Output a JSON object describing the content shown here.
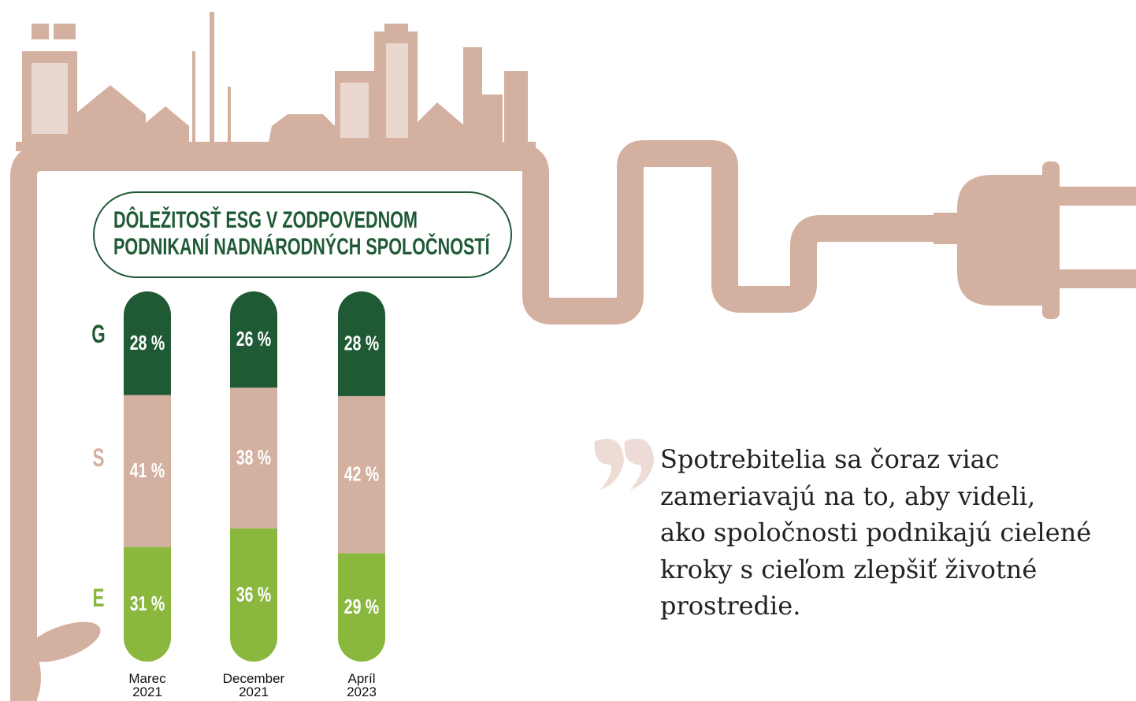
{
  "chart_data": {
    "type": "stacked-bar",
    "title": [
      "DÔLEŽITOSŤ ESG V ZODPOVEDNOM",
      "PODNIKANÍ NADNÁRODNÝCH SPOLOČNOSTÍ"
    ],
    "categories": [
      "Marec 2021",
      "December 2021",
      "Apríl 2023"
    ],
    "series": [
      {
        "name": "E",
        "color": "#8ab83f",
        "values": [
          31,
          36,
          29
        ],
        "value_labels": [
          "31 %",
          "36 %",
          "29 %"
        ]
      },
      {
        "name": "S",
        "color": "#d4b0a0",
        "values": [
          41,
          38,
          42
        ],
        "value_labels": [
          "41 %",
          "38 %",
          "42 %"
        ]
      },
      {
        "name": "G",
        "color": "#1f5a35",
        "values": [
          28,
          26,
          28
        ],
        "value_labels": [
          "28 %",
          "26 %",
          "28 %"
        ]
      }
    ]
  },
  "quote": {
    "lines": [
      "Spotrebitelia sa čoraz viac",
      "zameriavajú na to, aby videli,",
      "ako spoločnosti podnikajú cielené",
      "kroky s cieľom zlepšiť životné",
      "prostredie."
    ]
  }
}
